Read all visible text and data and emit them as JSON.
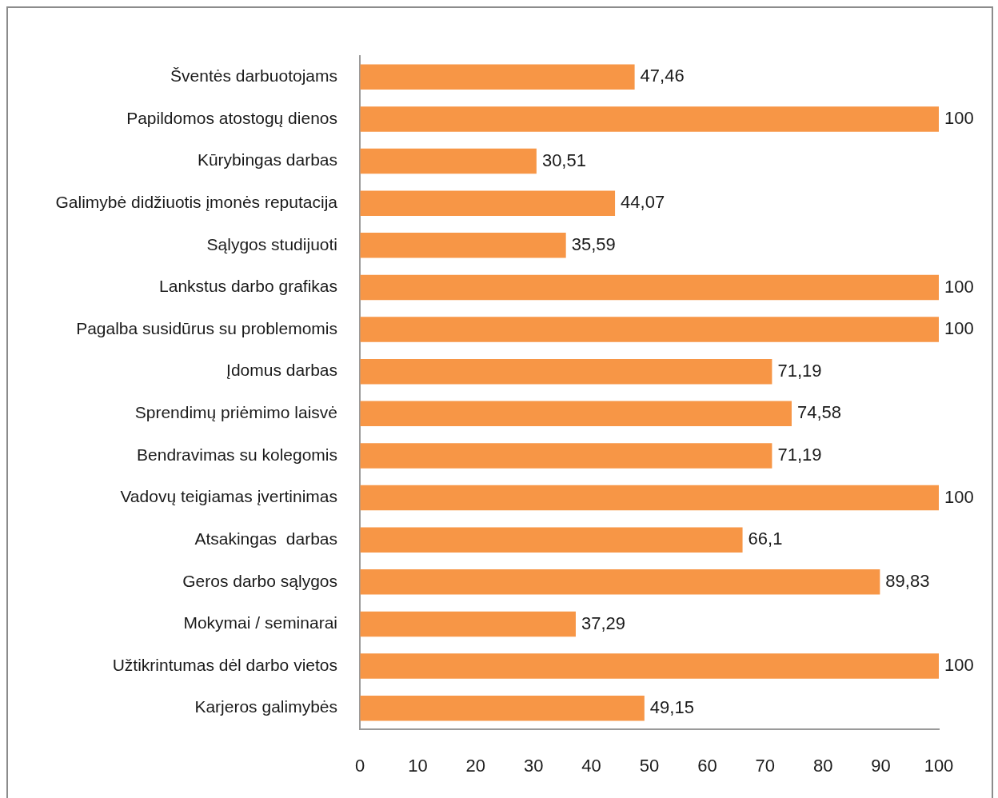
{
  "chart_data": {
    "type": "bar",
    "orientation": "horizontal",
    "categories": [
      "Šventės darbuotojams",
      "Papildomos atostogų dienos",
      "Kūrybingas darbas",
      "Galimybė didžiuotis įmonės reputacija",
      "Sąlygos studijuoti",
      "Lankstus darbo grafikas",
      "Pagalba susidūrus su problemomis",
      "Įdomus darbas",
      "Sprendimų priėmimo laisvė",
      "Bendravimas su kolegomis",
      "Vadovų teigiamas įvertinimas",
      "Atsakingas  darbas",
      "Geros darbo sąlygos",
      "Mokymai / seminarai",
      "Užtikrintumas dėl darbo vietos",
      "Karjeros galimybės"
    ],
    "values": [
      47.46,
      100,
      30.51,
      44.07,
      35.59,
      100,
      100,
      71.19,
      74.58,
      71.19,
      100,
      66.1,
      89.83,
      37.29,
      100,
      49.15
    ],
    "value_labels": [
      "47,46",
      "100",
      "30,51",
      "44,07",
      "35,59",
      "100",
      "100",
      "71,19",
      "74,58",
      "71,19",
      "100",
      "66,1",
      "89,83",
      "37,29",
      "100",
      "49,15"
    ],
    "color": "#f79646",
    "xlim": [
      0,
      100
    ],
    "xticks": [
      0,
      10,
      20,
      30,
      40,
      50,
      60,
      70,
      80,
      90,
      100
    ],
    "grid": false,
    "legend": false
  }
}
